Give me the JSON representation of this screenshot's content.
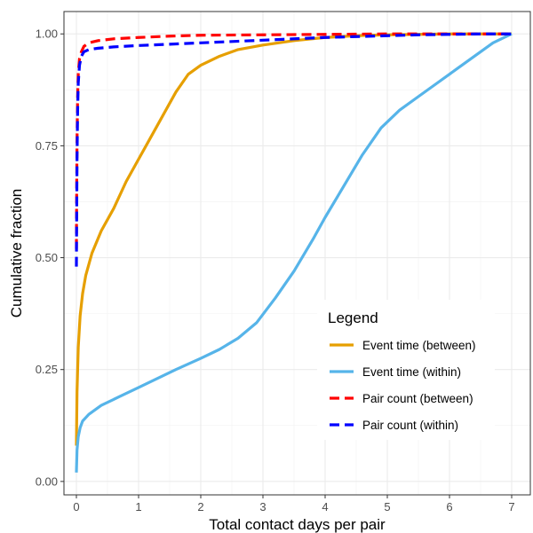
{
  "chart_data": {
    "type": "line",
    "title": "",
    "xlabel": "Total contact days per pair",
    "ylabel": "Cumulative fraction",
    "xlim": [
      -0.2,
      7.3
    ],
    "ylim": [
      -0.03,
      1.05
    ],
    "x_ticks": [
      0,
      1,
      2,
      3,
      4,
      5,
      6,
      7
    ],
    "x_tick_labels": [
      "0",
      "1",
      "2",
      "3",
      "4",
      "5",
      "6",
      "7"
    ],
    "y_ticks": [
      0,
      0.25,
      0.5,
      0.75,
      1
    ],
    "y_tick_labels": [
      "0.00",
      "0.25",
      "0.50",
      "0.75",
      "1.00"
    ],
    "grid": true,
    "legend_title": "Legend",
    "legend_position": "bottom-right",
    "series": [
      {
        "name": "Event time (between)",
        "color": "#E69F00",
        "dash": "solid",
        "x": [
          0,
          0.01,
          0.03,
          0.06,
          0.1,
          0.15,
          0.25,
          0.4,
          0.6,
          0.8,
          1.0,
          1.2,
          1.4,
          1.6,
          1.8,
          2.0,
          2.3,
          2.6,
          3.0,
          3.5,
          4.0,
          4.5,
          5.0,
          5.5,
          6.0,
          6.5,
          7.0
        ],
        "y": [
          0.08,
          0.2,
          0.3,
          0.37,
          0.42,
          0.46,
          0.51,
          0.56,
          0.61,
          0.67,
          0.72,
          0.77,
          0.82,
          0.87,
          0.91,
          0.93,
          0.95,
          0.965,
          0.975,
          0.985,
          0.992,
          0.996,
          0.998,
          0.999,
          1.0,
          1.0,
          1.0
        ]
      },
      {
        "name": "Event time (within)",
        "color": "#56B4E9",
        "dash": "solid",
        "x": [
          0,
          0.01,
          0.03,
          0.06,
          0.1,
          0.2,
          0.4,
          0.7,
          1.0,
          1.3,
          1.6,
          2.0,
          2.3,
          2.6,
          2.9,
          3.2,
          3.5,
          3.8,
          4.0,
          4.3,
          4.6,
          4.9,
          5.2,
          5.5,
          5.8,
          6.1,
          6.4,
          6.7,
          7.0
        ],
        "y": [
          0.02,
          0.07,
          0.1,
          0.12,
          0.135,
          0.15,
          0.17,
          0.19,
          0.21,
          0.23,
          0.25,
          0.275,
          0.295,
          0.32,
          0.355,
          0.41,
          0.47,
          0.54,
          0.59,
          0.66,
          0.73,
          0.79,
          0.83,
          0.86,
          0.89,
          0.92,
          0.95,
          0.98,
          1.0
        ]
      },
      {
        "name": "Pair count (between)",
        "color": "#FF0000",
        "dash": "dashed",
        "x": [
          0,
          0.005,
          0.01,
          0.02,
          0.03,
          0.05,
          0.08,
          0.12,
          0.2,
          0.35,
          0.6,
          1.0,
          1.5,
          2.0,
          3.0,
          4.0,
          5.0,
          6.0,
          7.0
        ],
        "y": [
          0.52,
          0.66,
          0.76,
          0.86,
          0.91,
          0.945,
          0.96,
          0.972,
          0.98,
          0.985,
          0.989,
          0.992,
          0.995,
          0.997,
          0.998,
          0.999,
          1.0,
          1.0,
          1.0
        ]
      },
      {
        "name": "Pair count (within)",
        "color": "#0000FF",
        "dash": "dashed",
        "x": [
          0,
          0.005,
          0.01,
          0.02,
          0.03,
          0.05,
          0.08,
          0.12,
          0.2,
          0.35,
          0.6,
          1.0,
          1.5,
          2.0,
          2.5,
          3.0,
          3.5,
          4.0,
          4.5,
          5.0,
          5.5,
          6.0,
          6.5,
          7.0
        ],
        "y": [
          0.48,
          0.6,
          0.72,
          0.83,
          0.89,
          0.93,
          0.95,
          0.96,
          0.965,
          0.968,
          0.971,
          0.974,
          0.977,
          0.98,
          0.983,
          0.986,
          0.989,
          0.992,
          0.994,
          0.996,
          0.998,
          0.999,
          1.0,
          1.0
        ]
      }
    ]
  }
}
